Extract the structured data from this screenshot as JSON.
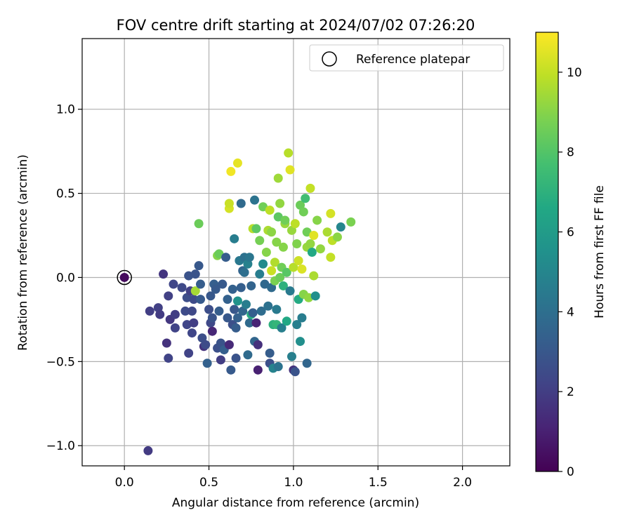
{
  "chart_data": {
    "type": "scatter",
    "title": "FOV centre drift starting at 2024/07/02 07:26:20",
    "xlabel": "Angular distance from reference (arcmin)",
    "ylabel": "Rotation from reference (arcmin)",
    "xlim": [
      -0.25,
      2.28
    ],
    "ylim": [
      -1.12,
      1.42
    ],
    "xticks": [
      0.0,
      0.5,
      1.0,
      1.5,
      2.0
    ],
    "yticks": [
      -1.0,
      -0.5,
      0.0,
      0.5,
      1.0
    ],
    "xtick_labels": [
      "0.0",
      "0.5",
      "1.0",
      "1.5",
      "2.0"
    ],
    "ytick_labels": [
      "−1.0",
      "−0.5",
      "0.0",
      "0.5",
      "1.0"
    ],
    "grid": true,
    "legend": {
      "position": "top-right",
      "entries": [
        "Reference platepar"
      ]
    },
    "colorbar": {
      "label": "Hours from first FF file",
      "range": [
        0,
        11
      ],
      "ticks": [
        0,
        2,
        4,
        6,
        8,
        10
      ],
      "tick_labels": [
        "0",
        "2",
        "4",
        "6",
        "8",
        "10"
      ],
      "colormap": "viridis"
    },
    "reference_point": {
      "x": 0.0,
      "y": 0.0
    },
    "points": [
      [
        0.0,
        0.0,
        0.3
      ],
      [
        0.14,
        -1.03,
        1.9
      ],
      [
        0.15,
        -0.2,
        2.0
      ],
      [
        0.2,
        -0.18,
        2.1
      ],
      [
        0.21,
        -0.22,
        1.9
      ],
      [
        0.23,
        0.02,
        1.7
      ],
      [
        0.25,
        -0.39,
        1.6
      ],
      [
        0.26,
        -0.48,
        2.2
      ],
      [
        0.26,
        -0.11,
        2.1
      ],
      [
        0.27,
        -0.25,
        1.8
      ],
      [
        0.29,
        -0.04,
        2.3
      ],
      [
        0.3,
        -0.22,
        2.0
      ],
      [
        0.3,
        -0.3,
        2.2
      ],
      [
        0.34,
        -0.06,
        2.4
      ],
      [
        0.36,
        -0.2,
        2.5
      ],
      [
        0.37,
        -0.28,
        2.3
      ],
      [
        0.37,
        -0.12,
        2.6
      ],
      [
        0.38,
        -0.45,
        2.2
      ],
      [
        0.38,
        0.01,
        2.8
      ],
      [
        0.39,
        -0.08,
        2.1
      ],
      [
        0.4,
        -0.2,
        2.4
      ],
      [
        0.4,
        -0.33,
        2.3
      ],
      [
        0.41,
        -0.27,
        2.0
      ],
      [
        0.41,
        -0.13,
        2.5
      ],
      [
        0.42,
        -0.08,
        9.5
      ],
      [
        0.42,
        0.02,
        2.8
      ],
      [
        0.44,
        0.07,
        3.0
      ],
      [
        0.44,
        0.32,
        8.5
      ],
      [
        0.45,
        -0.04,
        3.2
      ],
      [
        0.45,
        -0.13,
        3.1
      ],
      [
        0.46,
        -0.36,
        2.6
      ],
      [
        0.47,
        -0.41,
        1.6
      ],
      [
        0.48,
        -0.4,
        2.5
      ],
      [
        0.49,
        -0.51,
        3.4
      ],
      [
        0.5,
        -0.19,
        2.6
      ],
      [
        0.51,
        -0.27,
        2.4
      ],
      [
        0.51,
        -0.11,
        3.0
      ],
      [
        0.52,
        -0.24,
        2.8
      ],
      [
        0.52,
        -0.32,
        1.2
      ],
      [
        0.53,
        -0.04,
        3.3
      ],
      [
        0.54,
        -0.07,
        3.1
      ],
      [
        0.55,
        -0.42,
        2.7
      ],
      [
        0.55,
        0.13,
        9.0
      ],
      [
        0.56,
        -0.2,
        3.2
      ],
      [
        0.56,
        0.14,
        8.5
      ],
      [
        0.57,
        -0.39,
        2.8
      ],
      [
        0.57,
        -0.49,
        2.0
      ],
      [
        0.58,
        -0.04,
        3.1
      ],
      [
        0.59,
        -0.43,
        3.3
      ],
      [
        0.6,
        0.12,
        3.2
      ],
      [
        0.61,
        -0.13,
        3.4
      ],
      [
        0.61,
        -0.24,
        3.0
      ],
      [
        0.62,
        0.41,
        10.3
      ],
      [
        0.62,
        0.44,
        10.1
      ],
      [
        0.62,
        -0.4,
        1.3
      ],
      [
        0.63,
        0.63,
        10.8
      ],
      [
        0.63,
        -0.55,
        3.1
      ],
      [
        0.64,
        -0.07,
        3.4
      ],
      [
        0.64,
        -0.28,
        2.7
      ],
      [
        0.65,
        -0.19,
        3.0
      ],
      [
        0.65,
        0.23,
        4.6
      ],
      [
        0.66,
        -0.48,
        2.8
      ],
      [
        0.66,
        -0.3,
        3.2
      ],
      [
        0.67,
        0.68,
        10.6
      ],
      [
        0.67,
        -0.14,
        5.6
      ],
      [
        0.67,
        -0.24,
        3.4
      ],
      [
        0.68,
        0.1,
        4.4
      ],
      [
        0.69,
        0.44,
        3.8
      ],
      [
        0.69,
        -0.06,
        3.3
      ],
      [
        0.7,
        0.04,
        3.5
      ],
      [
        0.7,
        -0.2,
        3.6
      ],
      [
        0.71,
        0.12,
        4.1
      ],
      [
        0.71,
        0.03,
        4.0
      ],
      [
        0.72,
        -0.16,
        4.6
      ],
      [
        0.73,
        0.08,
        4.8
      ],
      [
        0.73,
        -0.46,
        3.8
      ],
      [
        0.74,
        -0.27,
        3.8
      ],
      [
        0.74,
        0.12,
        4.3
      ],
      [
        0.75,
        -0.22,
        6.8
      ],
      [
        0.75,
        -0.05,
        3.5
      ],
      [
        0.76,
        0.29,
        9.8
      ],
      [
        0.76,
        -0.21,
        3.3
      ],
      [
        0.77,
        0.46,
        4.2
      ],
      [
        0.77,
        -0.38,
        3.6
      ],
      [
        0.78,
        -0.27,
        1.1
      ],
      [
        0.78,
        0.29,
        8.2
      ],
      [
        0.79,
        -0.55,
        1.0
      ],
      [
        0.79,
        -0.4,
        1.5
      ],
      [
        0.8,
        0.22,
        8.7
      ],
      [
        0.8,
        0.02,
        4.6
      ],
      [
        0.81,
        -0.2,
        3.9
      ],
      [
        0.82,
        0.08,
        5.2
      ],
      [
        0.82,
        0.42,
        8.6
      ],
      [
        0.83,
        -0.04,
        3.7
      ],
      [
        0.84,
        0.15,
        9.0
      ],
      [
        0.85,
        0.28,
        9.6
      ],
      [
        0.85,
        -0.17,
        4.1
      ],
      [
        0.86,
        -0.45,
        3.2
      ],
      [
        0.86,
        0.4,
        9.9
      ],
      [
        0.86,
        -0.51,
        2.7
      ],
      [
        0.87,
        -0.06,
        3.8
      ],
      [
        0.87,
        0.04,
        10.1
      ],
      [
        0.87,
        0.27,
        9.1
      ],
      [
        0.88,
        -0.28,
        7.0
      ],
      [
        0.88,
        -0.54,
        4.9
      ],
      [
        0.89,
        0.09,
        9.7
      ],
      [
        0.89,
        -0.02,
        8.8
      ],
      [
        0.9,
        0.21,
        9.0
      ],
      [
        0.9,
        -0.28,
        7.2
      ],
      [
        0.9,
        -0.19,
        4.5
      ],
      [
        0.91,
        0.36,
        8.2
      ],
      [
        0.91,
        -0.53,
        4.2
      ],
      [
        0.91,
        0.59,
        9.4
      ],
      [
        0.92,
        0.44,
        9.2
      ],
      [
        0.92,
        0.0,
        8.5
      ],
      [
        0.93,
        -0.3,
        4.7
      ],
      [
        0.93,
        0.06,
        8.6
      ],
      [
        0.94,
        -0.05,
        7.0
      ],
      [
        0.94,
        0.18,
        9.0
      ],
      [
        0.95,
        0.32,
        9.3
      ],
      [
        0.95,
        0.34,
        8.6
      ],
      [
        0.96,
        0.03,
        8.1
      ],
      [
        0.96,
        -0.26,
        6.6
      ],
      [
        0.97,
        0.74,
        9.8
      ],
      [
        0.98,
        -0.08,
        4.5
      ],
      [
        0.98,
        0.64,
        10.5
      ],
      [
        0.99,
        0.28,
        9.3
      ],
      [
        0.99,
        -0.47,
        4.7
      ],
      [
        1.0,
        -0.55,
        1.6
      ],
      [
        1.0,
        0.06,
        9.8
      ],
      [
        1.01,
        0.32,
        9.9
      ],
      [
        1.01,
        -0.56,
        2.8
      ],
      [
        1.02,
        -0.28,
        4.7
      ],
      [
        1.02,
        0.2,
        8.9
      ],
      [
        1.03,
        -0.13,
        6.7
      ],
      [
        1.03,
        0.1,
        10.2
      ],
      [
        1.04,
        -0.38,
        5.4
      ],
      [
        1.04,
        0.43,
        8.5
      ],
      [
        1.05,
        -0.24,
        4.6
      ],
      [
        1.05,
        0.05,
        10.4
      ],
      [
        1.06,
        -0.1,
        9.0
      ],
      [
        1.06,
        0.39,
        8.6
      ],
      [
        1.07,
        0.47,
        7.6
      ],
      [
        1.08,
        0.18,
        9.3
      ],
      [
        1.08,
        0.27,
        8.6
      ],
      [
        1.08,
        -0.51,
        3.6
      ],
      [
        1.09,
        -0.12,
        9.2
      ],
      [
        1.1,
        0.53,
        10.0
      ],
      [
        1.1,
        0.2,
        9.2
      ],
      [
        1.11,
        0.15,
        6.6
      ],
      [
        1.12,
        0.25,
        10.5
      ],
      [
        1.12,
        0.01,
        9.6
      ],
      [
        1.13,
        -0.11,
        5.4
      ],
      [
        1.14,
        0.34,
        9.0
      ],
      [
        1.16,
        0.17,
        9.2
      ],
      [
        1.2,
        0.27,
        9.6
      ],
      [
        1.22,
        0.12,
        10.0
      ],
      [
        1.22,
        0.38,
        10.3
      ],
      [
        1.23,
        0.22,
        9.9
      ],
      [
        1.26,
        0.24,
        9.1
      ],
      [
        1.28,
        0.3,
        5.0
      ],
      [
        1.34,
        0.33,
        8.8
      ]
    ]
  }
}
